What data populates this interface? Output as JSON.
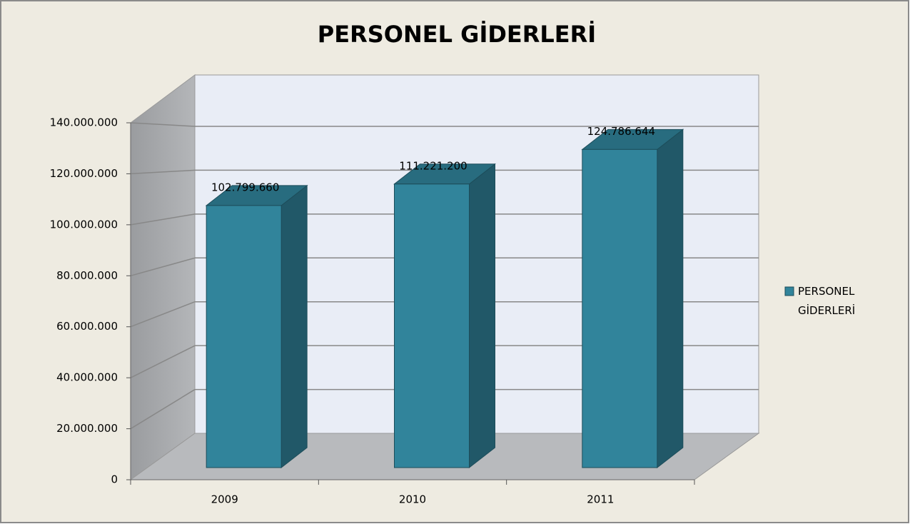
{
  "chart_data": {
    "type": "bar3d",
    "title": "PERSONEL GİDERLERİ",
    "categories": [
      "2009",
      "2010",
      "2011"
    ],
    "series": [
      {
        "name": "PERSONEL GİDERLERİ",
        "color": "#31849b",
        "values": [
          102799660,
          111221200,
          124786644
        ],
        "value_labels": [
          "102.799.660",
          "111.221.200",
          "124.786.644"
        ]
      }
    ],
    "ylim": [
      0,
      140000000
    ],
    "yticks": [
      0,
      {
        "value": 20000000,
        "label": "20.000.000"
      },
      {
        "value": 40000000,
        "label": "40.000.000"
      },
      {
        "value": 60000000,
        "label": "60.000.000"
      },
      {
        "value": 80000000,
        "label": "80.000.000"
      },
      {
        "value": 100000000,
        "label": "100.000.000"
      },
      {
        "value": 120000000,
        "label": "120.000.000"
      },
      {
        "value": 140000000,
        "label": "140.000.000"
      }
    ],
    "grid": true,
    "legend": "right"
  }
}
